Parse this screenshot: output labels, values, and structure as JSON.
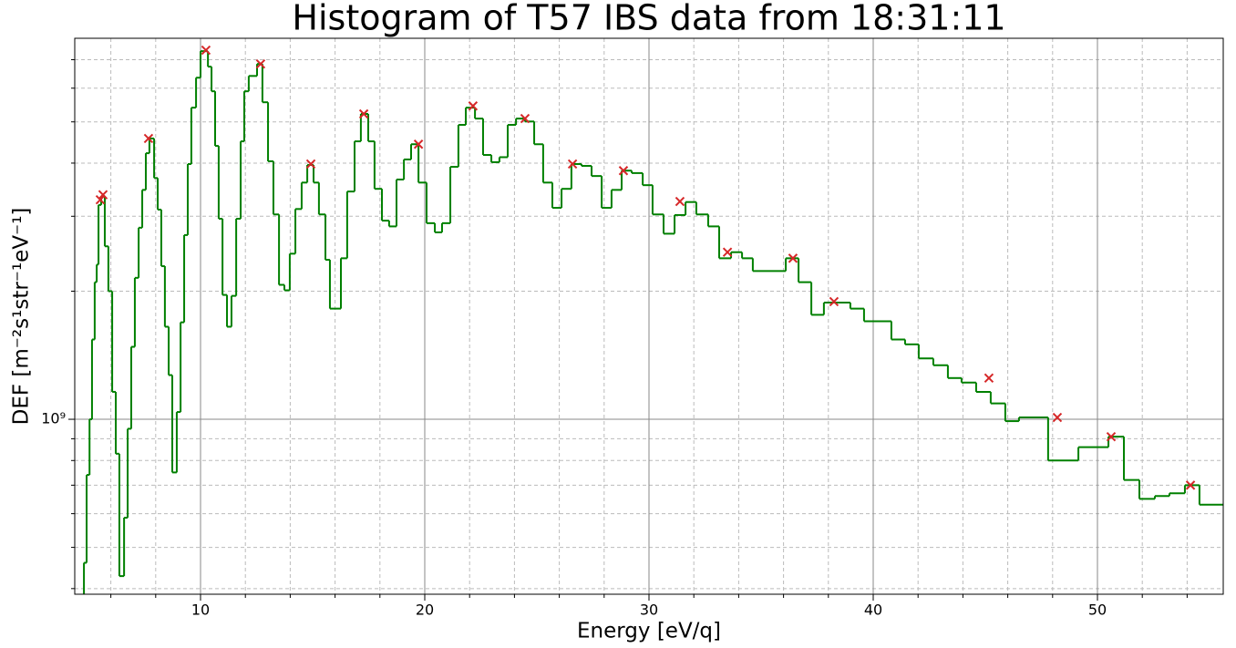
{
  "chart_data": {
    "type": "histogram",
    "title": "Histogram of T57 IBS data from 18:31:11",
    "xlabel": "Energy [eV/q]",
    "ylabel": "DEF [m⁻²s¹str⁻¹eV⁻¹]",
    "color": "#008000",
    "yscale": "log",
    "grid": true,
    "xlim": [
      4.39,
      55.61
    ],
    "ylim": [
      388000000,
      7860000000
    ],
    "xticks": [
      10,
      20,
      30,
      40,
      50
    ],
    "xticks_minor": [
      6,
      8,
      12,
      14,
      16,
      18,
      22,
      24,
      26,
      28,
      32,
      34,
      36,
      38,
      42,
      44,
      46,
      48,
      52,
      54
    ],
    "yticks": [
      {
        "value": 1000000000,
        "label": "10⁹"
      }
    ],
    "yticks_minor": [
      400000000,
      500000000,
      600000000,
      700000000,
      800000000,
      900000000,
      2000000000,
      3000000000,
      4000000000,
      5000000000,
      6000000000,
      7000000000
    ],
    "bins": [
      4.8,
      4.92,
      5.05,
      5.16,
      5.28,
      5.37,
      5.45,
      5.57,
      5.73,
      5.89,
      6.06,
      6.22,
      6.38,
      6.59,
      6.75,
      6.91,
      7.07,
      7.24,
      7.4,
      7.56,
      7.72,
      7.93,
      8.09,
      8.25,
      8.41,
      8.58,
      8.74,
      8.94,
      9.11,
      9.27,
      9.43,
      9.59,
      9.8,
      10.0,
      10.33,
      10.49,
      10.65,
      10.81,
      10.98,
      11.18,
      11.38,
      11.59,
      11.79,
      11.95,
      12.15,
      12.52,
      12.76,
      13.01,
      13.25,
      13.5,
      13.74,
      13.98,
      14.23,
      14.51,
      14.76,
      15.04,
      15.28,
      15.57,
      15.77,
      16.26,
      16.54,
      16.87,
      17.15,
      17.48,
      17.76,
      18.09,
      18.41,
      18.74,
      19.07,
      19.39,
      19.72,
      20.08,
      20.45,
      20.77,
      21.14,
      21.5,
      21.83,
      22.24,
      22.6,
      22.97,
      23.33,
      23.7,
      24.07,
      24.47,
      24.88,
      25.28,
      25.69,
      26.1,
      26.54,
      26.99,
      27.44,
      27.89,
      28.33,
      28.78,
      29.23,
      29.72,
      30.16,
      30.65,
      31.14,
      31.63,
      32.11,
      32.64,
      33.13,
      33.66,
      34.15,
      34.63,
      36.1,
      36.67,
      37.24,
      37.8,
      38.98,
      39.59,
      40.81,
      41.42,
      42.03,
      42.68,
      43.33,
      43.94,
      44.59,
      45.24,
      45.89,
      46.5,
      47.8,
      49.15,
      50.49,
      51.18,
      51.87,
      52.56,
      53.21,
      53.9,
      54.55,
      55.6
    ],
    "counts": [
      460000000.0,
      740000000.0,
      1000000000.0,
      1540000000.0,
      2100000000.0,
      2310000000.0,
      3190000000.0,
      3350000000.0,
      2550000000.0,
      2000000000.0,
      1160000000.0,
      830000000.0,
      428000000.0,
      587000000.0,
      950000000.0,
      1480000000.0,
      2150000000.0,
      2820000000.0,
      3460000000.0,
      4220000000.0,
      4570000000.0,
      3690000000.0,
      3110000000.0,
      2290000000.0,
      1650000000.0,
      1270000000.0,
      750000000.0,
      1040000000.0,
      1690000000.0,
      2710000000.0,
      3980000000.0,
      5400000000.0,
      6350000000.0,
      7330000000.0,
      6740000000.0,
      5900000000.0,
      4390000000.0,
      2960000000.0,
      1960000000.0,
      1650000000.0,
      1950000000.0,
      2960000000.0,
      4500000000.0,
      5900000000.0,
      6410000000.0,
      6840000000.0,
      5560000000.0,
      4040000000.0,
      3030000000.0,
      2070000000.0,
      2010000000.0,
      2450000000.0,
      3120000000.0,
      3600000000.0,
      3960000000.0,
      3600000000.0,
      3030000000.0,
      2370000000.0,
      1820000000.0,
      2390000000.0,
      3430000000.0,
      4500000000.0,
      5220000000.0,
      4500000000.0,
      3480000000.0,
      2930000000.0,
      2840000000.0,
      3660000000.0,
      4080000000.0,
      4430000000.0,
      3600000000.0,
      2890000000.0,
      2750000000.0,
      2890000000.0,
      3920000000.0,
      4920000000.0,
      5400000000.0,
      5090000000.0,
      4180000000.0,
      4020000000.0,
      4130000000.0,
      4920000000.0,
      5090000000.0,
      5010000000.0,
      4430000000.0,
      3600000000.0,
      3140000000.0,
      3480000000.0,
      3980000000.0,
      3940000000.0,
      3730000000.0,
      3140000000.0,
      3460000000.0,
      3840000000.0,
      3790000000.0,
      3550000000.0,
      3030000000.0,
      2730000000.0,
      3020000000.0,
      3240000000.0,
      3030000000.0,
      2840000000.0,
      2390000000.0,
      2470000000.0,
      2390000000.0,
      2230000000.0,
      2390000000.0,
      2100000000.0,
      1760000000.0,
      1880000000.0,
      1820000000.0,
      1700000000.0,
      1540000000.0,
      1500000000.0,
      1390000000.0,
      1340000000.0,
      1250000000.0,
      1220000000.0,
      1160000000.0,
      1090000000.0,
      990000000.0,
      1010000000.0,
      800000000.0,
      860000000.0,
      910000000.0,
      720000000.0,
      650000000.0,
      660000000.0,
      670000000.0,
      700000000.0,
      630000000.0
    ],
    "markers": {
      "color": "#d62728",
      "x": [
        5.53,
        5.65,
        7.68,
        10.24,
        12.68,
        14.92,
        17.28,
        19.72,
        22.15,
        24.47,
        26.59,
        28.86,
        31.38,
        33.5,
        36.42,
        38.25,
        45.16,
        48.21,
        50.61,
        54.15
      ],
      "y": [
        3280000000.0,
        3370000000.0,
        4570000000.0,
        7370000000.0,
        6840000000.0,
        3980000000.0,
        5220000000.0,
        4430000000.0,
        5450000000.0,
        5090000000.0,
        3980000000.0,
        3840000000.0,
        3250000000.0,
        2470000000.0,
        2390000000.0,
        1890000000.0,
        1250000000.0,
        1010000000.0,
        910000000.0,
        700000000.0
      ]
    }
  }
}
